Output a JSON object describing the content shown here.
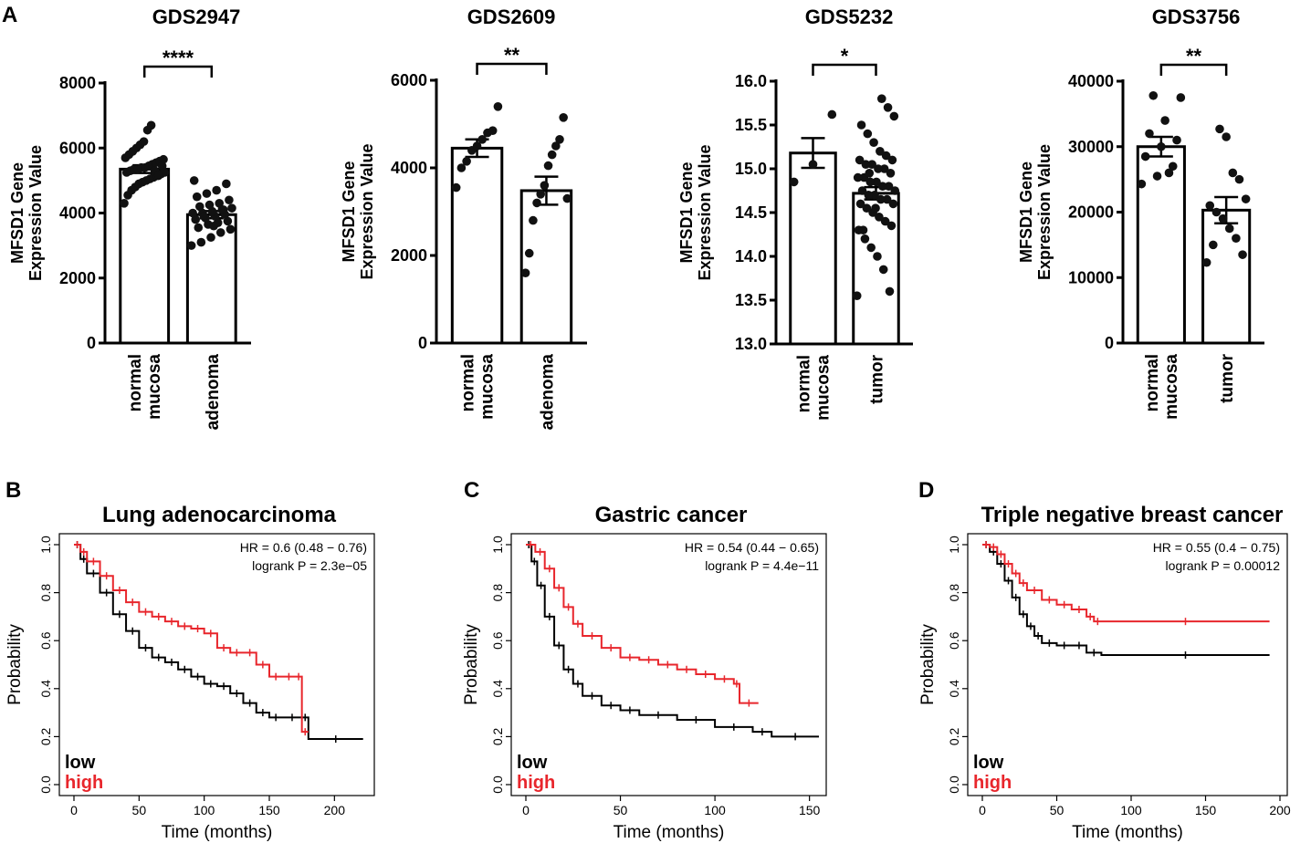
{
  "colors": {
    "low": "#000000",
    "high": "#e8262c"
  },
  "panel_letters": {
    "A": "A",
    "B": "B",
    "C": "C",
    "D": "D"
  },
  "chart_data": [
    {
      "type": "bar",
      "title": "GDS2947",
      "ylabel": [
        "MFSD1 Gene",
        "Expression Value"
      ],
      "categories": [
        [
          "normal",
          "mucosa"
        ],
        [
          "adenoma"
        ]
      ],
      "means": [
        5350,
        3950
      ],
      "sem": [
        120,
        110
      ],
      "ylim": [
        0,
        8000
      ],
      "yticks": [
        0,
        2000,
        4000,
        6000,
        8000
      ],
      "ytick_labels": [
        "0",
        "2000",
        "4000",
        "6000",
        "8000"
      ],
      "significance": "****",
      "points": [
        [
          4300,
          4550,
          4700,
          4800,
          4900,
          4950,
          5000,
          5050,
          5100,
          5150,
          5200,
          5250,
          5250,
          5300,
          5350,
          5350,
          5400,
          5400,
          5450,
          5500,
          5550,
          5600,
          5650,
          5700,
          5800,
          5900,
          6000,
          6100,
          6200,
          6550,
          6700,
          5300,
          5150,
          5450
        ],
        [
          3000,
          3100,
          3250,
          3400,
          3500,
          3550,
          3650,
          3700,
          3750,
          3800,
          3850,
          3900,
          3950,
          4000,
          4000,
          4050,
          4100,
          4150,
          4200,
          4250,
          4300,
          4400,
          4500,
          4600,
          4700,
          4900,
          5000,
          3900,
          3600,
          4100
        ]
      ]
    },
    {
      "type": "bar",
      "title": "GDS2609",
      "ylabel": [
        "MFSD1 Gene",
        "Expression Value"
      ],
      "categories": [
        [
          "normal",
          "mucosa"
        ],
        [
          "adenoma"
        ]
      ],
      "means": [
        4450,
        3480
      ],
      "sem": [
        200,
        320
      ],
      "ylim": [
        0,
        6000
      ],
      "yticks": [
        0,
        2000,
        4000,
        6000
      ],
      "ytick_labels": [
        "0",
        "2000",
        "4000",
        "6000"
      ],
      "significance": "**",
      "points": [
        [
          3550,
          4000,
          4150,
          4400,
          4500,
          4650,
          4800,
          4850,
          5400
        ],
        [
          1600,
          2050,
          2800,
          3200,
          3400,
          3600,
          4050,
          4300,
          4500,
          4650,
          5150,
          3300
        ]
      ]
    },
    {
      "type": "bar",
      "title": "GDS5232",
      "ylabel": [
        "MFSD1 Gene",
        "Expression Value"
      ],
      "categories": [
        [
          "normal",
          "mucosa"
        ],
        [
          "tumor"
        ]
      ],
      "means": [
        15.18,
        14.72
      ],
      "sem": [
        0.17,
        0.07
      ],
      "ylim": [
        13.0,
        16.0
      ],
      "yticks": [
        13.0,
        13.5,
        14.0,
        14.5,
        15.0,
        15.5,
        16.0
      ],
      "ytick_labels": [
        "13.0",
        "13.5",
        "14.0",
        "14.5",
        "15.0",
        "15.5",
        "16.0"
      ],
      "significance": "*",
      "points": [
        [
          14.85,
          15.05,
          15.62
        ],
        [
          13.55,
          13.6,
          13.85,
          14.0,
          14.1,
          14.2,
          14.3,
          14.35,
          14.4,
          14.45,
          14.5,
          14.55,
          14.6,
          14.6,
          14.65,
          14.65,
          14.7,
          14.7,
          14.75,
          14.75,
          14.8,
          14.8,
          14.85,
          14.85,
          14.9,
          14.9,
          14.95,
          15.0,
          15.0,
          15.05,
          15.05,
          15.1,
          15.1,
          15.15,
          15.2,
          15.3,
          15.4,
          15.5,
          15.6,
          15.7,
          15.8,
          14.55,
          14.95,
          14.3
        ]
      ]
    },
    {
      "type": "bar",
      "title": "GDS3756",
      "ylabel": [
        "MFSD1 Gene",
        "Expression Value"
      ],
      "categories": [
        [
          "normal",
          "mucosa"
        ],
        [
          "tumor"
        ]
      ],
      "means": [
        30000,
        20300
      ],
      "sem": [
        1500,
        2000
      ],
      "ylim": [
        0,
        40000
      ],
      "yticks": [
        0,
        10000,
        20000,
        30000,
        40000
      ],
      "ytick_labels": [
        "0",
        "10000",
        "20000",
        "30000",
        "40000"
      ],
      "significance": "**",
      "points": [
        [
          24300,
          25500,
          27000,
          28500,
          30000,
          31000,
          32000,
          34000,
          37500,
          37800,
          26000
        ],
        [
          12300,
          13500,
          16000,
          17500,
          19000,
          20000,
          21000,
          22000,
          25000,
          26000,
          31500,
          32700,
          15000
        ]
      ]
    },
    {
      "type": "line",
      "subtype": "kaplan-meier",
      "panel": "B",
      "title": "Lung adenocarcinoma",
      "xlabel": "Time (months)",
      "ylabel": "Probability",
      "xlim": [
        0,
        225
      ],
      "ylim": [
        0,
        1.0
      ],
      "xticks": [
        0,
        50,
        100,
        150,
        200
      ],
      "yticks": [
        0.0,
        0.2,
        0.4,
        0.6,
        0.8,
        1.0
      ],
      "ytick_labels": [
        "0.0",
        "0.2",
        "0.4",
        "0.6",
        "0.8",
        "1.0"
      ],
      "hr_text": "HR = 0.6 (0.48 − 0.76)",
      "logrank_text": "logrank P = 2.3e−05",
      "legend": [
        "low",
        "high"
      ],
      "series": [
        {
          "name": "low",
          "x": [
            0,
            5,
            10,
            20,
            30,
            40,
            50,
            60,
            70,
            80,
            90,
            100,
            110,
            120,
            130,
            140,
            150,
            160,
            175,
            180,
            222
          ],
          "y": [
            1.0,
            0.94,
            0.88,
            0.8,
            0.71,
            0.64,
            0.57,
            0.53,
            0.51,
            0.48,
            0.45,
            0.42,
            0.41,
            0.38,
            0.34,
            0.3,
            0.28,
            0.28,
            0.28,
            0.19,
            0.19
          ]
        },
        {
          "name": "high",
          "x": [
            0,
            5,
            10,
            20,
            30,
            40,
            50,
            60,
            70,
            80,
            90,
            100,
            110,
            120,
            130,
            140,
            150,
            160,
            170,
            175,
            180
          ],
          "y": [
            1.0,
            0.97,
            0.93,
            0.87,
            0.81,
            0.76,
            0.72,
            0.7,
            0.68,
            0.66,
            0.65,
            0.63,
            0.57,
            0.55,
            0.55,
            0.5,
            0.45,
            0.45,
            0.45,
            0.22,
            0.22
          ]
        }
      ]
    },
    {
      "type": "line",
      "subtype": "kaplan-meier",
      "panel": "C",
      "title": "Gastric cancer",
      "xlabel": "Time (months)",
      "ylabel": "Probability",
      "xlim": [
        0,
        155
      ],
      "ylim": [
        0,
        1.0
      ],
      "xticks": [
        0,
        50,
        100,
        150
      ],
      "yticks": [
        0.0,
        0.2,
        0.4,
        0.6,
        0.8,
        1.0
      ],
      "ytick_labels": [
        "0.0",
        "0.2",
        "0.4",
        "0.6",
        "0.8",
        "1.0"
      ],
      "hr_text": "HR = 0.54 (0.44 − 0.65)",
      "logrank_text": "logrank P = 4.4e−11",
      "legend": [
        "low",
        "high"
      ],
      "series": [
        {
          "name": "low",
          "x": [
            0,
            3,
            6,
            10,
            15,
            20,
            25,
            30,
            40,
            50,
            60,
            80,
            100,
            120,
            130,
            155
          ],
          "y": [
            1.0,
            0.93,
            0.83,
            0.7,
            0.58,
            0.48,
            0.42,
            0.37,
            0.33,
            0.31,
            0.29,
            0.27,
            0.24,
            0.22,
            0.2,
            0.2
          ]
        },
        {
          "name": "high",
          "x": [
            0,
            5,
            10,
            15,
            20,
            25,
            30,
            40,
            50,
            60,
            70,
            80,
            90,
            100,
            110,
            113,
            123
          ],
          "y": [
            1.0,
            0.97,
            0.9,
            0.82,
            0.74,
            0.67,
            0.62,
            0.57,
            0.53,
            0.52,
            0.5,
            0.48,
            0.46,
            0.44,
            0.42,
            0.34,
            0.34
          ]
        }
      ]
    },
    {
      "type": "line",
      "subtype": "kaplan-meier",
      "panel": "D",
      "title": "Triple negative breast cancer",
      "xlabel": "Time (months)",
      "ylabel": "Probability",
      "xlim": [
        0,
        200
      ],
      "ylim": [
        0,
        1.0
      ],
      "xticks": [
        0,
        50,
        100,
        150,
        200
      ],
      "yticks": [
        0.0,
        0.2,
        0.4,
        0.6,
        0.8,
        1.0
      ],
      "ytick_labels": [
        "0.0",
        "0.2",
        "0.4",
        "0.6",
        "0.8",
        "1.0"
      ],
      "hr_text": "HR = 0.55 (0.4 − 0.75)",
      "logrank_text": "logrank P = 0.00012",
      "legend": [
        "low",
        "high"
      ],
      "series": [
        {
          "name": "low",
          "x": [
            0,
            5,
            10,
            15,
            20,
            25,
            30,
            35,
            40,
            50,
            60,
            70,
            80,
            193
          ],
          "y": [
            1.0,
            0.97,
            0.92,
            0.85,
            0.78,
            0.71,
            0.66,
            0.62,
            0.59,
            0.58,
            0.58,
            0.55,
            0.54,
            0.54
          ]
        },
        {
          "name": "high",
          "x": [
            0,
            5,
            10,
            15,
            20,
            25,
            30,
            40,
            50,
            60,
            70,
            75,
            80,
            193
          ],
          "y": [
            1.0,
            0.99,
            0.96,
            0.92,
            0.88,
            0.84,
            0.81,
            0.77,
            0.75,
            0.73,
            0.7,
            0.68,
            0.68,
            0.68
          ]
        }
      ]
    }
  ]
}
